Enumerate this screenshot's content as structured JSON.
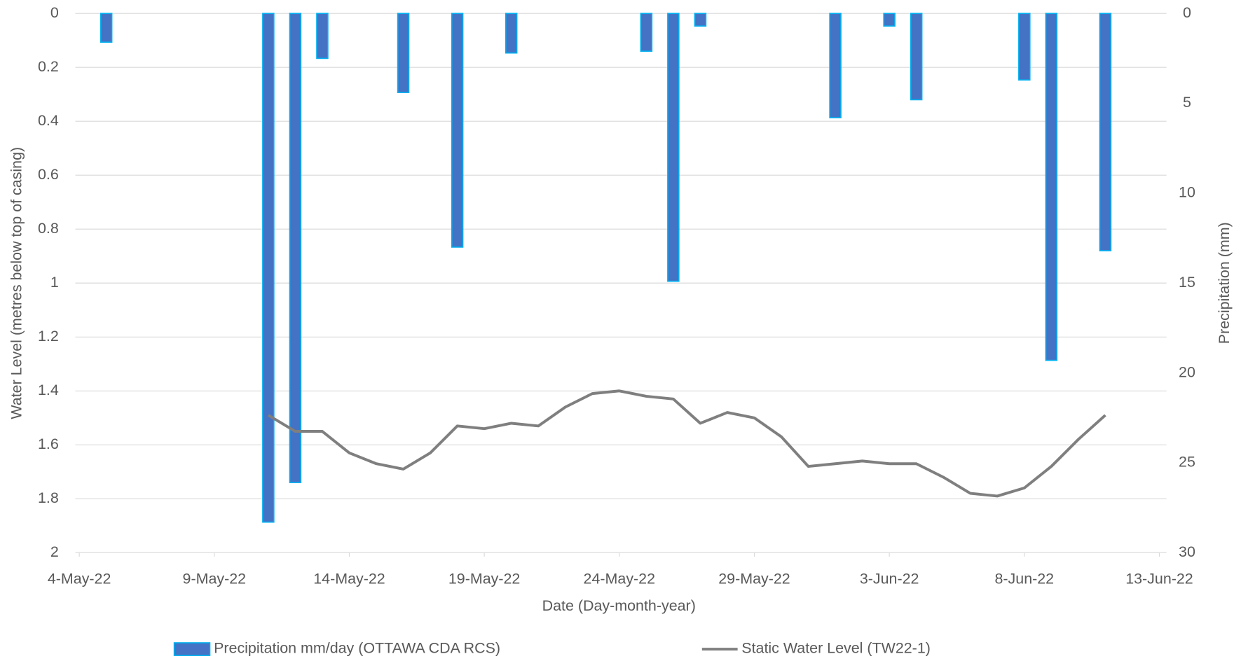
{
  "chart_data": {
    "type": "bar-line",
    "x_label": "Date (Day-month-year)",
    "y_label": "Water Level (metres below top of casing)",
    "y2_label": "Precipitation (mm)",
    "xlim": [
      "2022-05-04",
      "2022-06-13"
    ],
    "xticks": [
      {
        "value": "2022-05-04",
        "label": "4-May-22"
      },
      {
        "value": "2022-05-09",
        "label": "9-May-22"
      },
      {
        "value": "2022-05-14",
        "label": "14-May-22"
      },
      {
        "value": "2022-05-19",
        "label": "19-May-22"
      },
      {
        "value": "2022-05-24",
        "label": "24-May-22"
      },
      {
        "value": "2022-05-29",
        "label": "29-May-22"
      },
      {
        "value": "2022-06-03",
        "label": "3-Jun-22"
      },
      {
        "value": "2022-06-08",
        "label": "8-Jun-22"
      },
      {
        "value": "2022-06-13",
        "label": "13-Jun-22"
      }
    ],
    "ylim": [
      0,
      2
    ],
    "yticks": [
      0,
      0.2,
      0.4,
      0.6,
      0.8,
      1,
      1.2,
      1.4,
      1.6,
      1.8,
      2
    ],
    "y_inverted": true,
    "y2lim": [
      0,
      30
    ],
    "y2ticks": [
      0,
      5,
      10,
      15,
      20,
      25,
      30
    ],
    "y2_inverted": true,
    "grid": true,
    "legend": "bottom",
    "series": [
      {
        "name": "Precipitation mm/day (OTTAWA CDA RCS)",
        "type": "bar",
        "axis": "y2",
        "color": "#4472c4",
        "edge_color": "#00b0f0",
        "x": [
          "2022-05-05",
          "2022-05-11",
          "2022-05-12",
          "2022-05-13",
          "2022-05-16",
          "2022-05-18",
          "2022-05-20",
          "2022-05-25",
          "2022-05-26",
          "2022-05-27",
          "2022-06-01",
          "2022-06-03",
          "2022-06-04",
          "2022-06-08",
          "2022-06-09",
          "2022-06-11"
        ],
        "values": [
          1.6,
          28.3,
          26.1,
          2.5,
          4.4,
          13.0,
          2.2,
          2.1,
          14.9,
          0.7,
          5.8,
          0.7,
          4.8,
          3.7,
          19.3,
          13.2
        ]
      },
      {
        "name": "Static Water Level (TW22-1)",
        "type": "line",
        "axis": "y",
        "color": "#7f7f7f",
        "x": [
          "2022-05-11",
          "2022-05-12",
          "2022-05-13",
          "2022-05-14",
          "2022-05-15",
          "2022-05-16",
          "2022-05-17",
          "2022-05-18",
          "2022-05-19",
          "2022-05-20",
          "2022-05-21",
          "2022-05-22",
          "2022-05-23",
          "2022-05-24",
          "2022-05-25",
          "2022-05-26",
          "2022-05-27",
          "2022-05-28",
          "2022-05-29",
          "2022-05-30",
          "2022-05-31",
          "2022-06-01",
          "2022-06-02",
          "2022-06-03",
          "2022-06-04",
          "2022-06-05",
          "2022-06-06",
          "2022-06-07",
          "2022-06-08",
          "2022-06-09",
          "2022-06-10",
          "2022-06-11"
        ],
        "values": [
          1.49,
          1.55,
          1.55,
          1.63,
          1.67,
          1.69,
          1.63,
          1.53,
          1.54,
          1.52,
          1.53,
          1.46,
          1.41,
          1.4,
          1.42,
          1.43,
          1.52,
          1.48,
          1.5,
          1.57,
          1.68,
          1.67,
          1.66,
          1.67,
          1.67,
          1.72,
          1.78,
          1.79,
          1.76,
          1.68,
          1.58,
          1.49
        ]
      }
    ]
  }
}
